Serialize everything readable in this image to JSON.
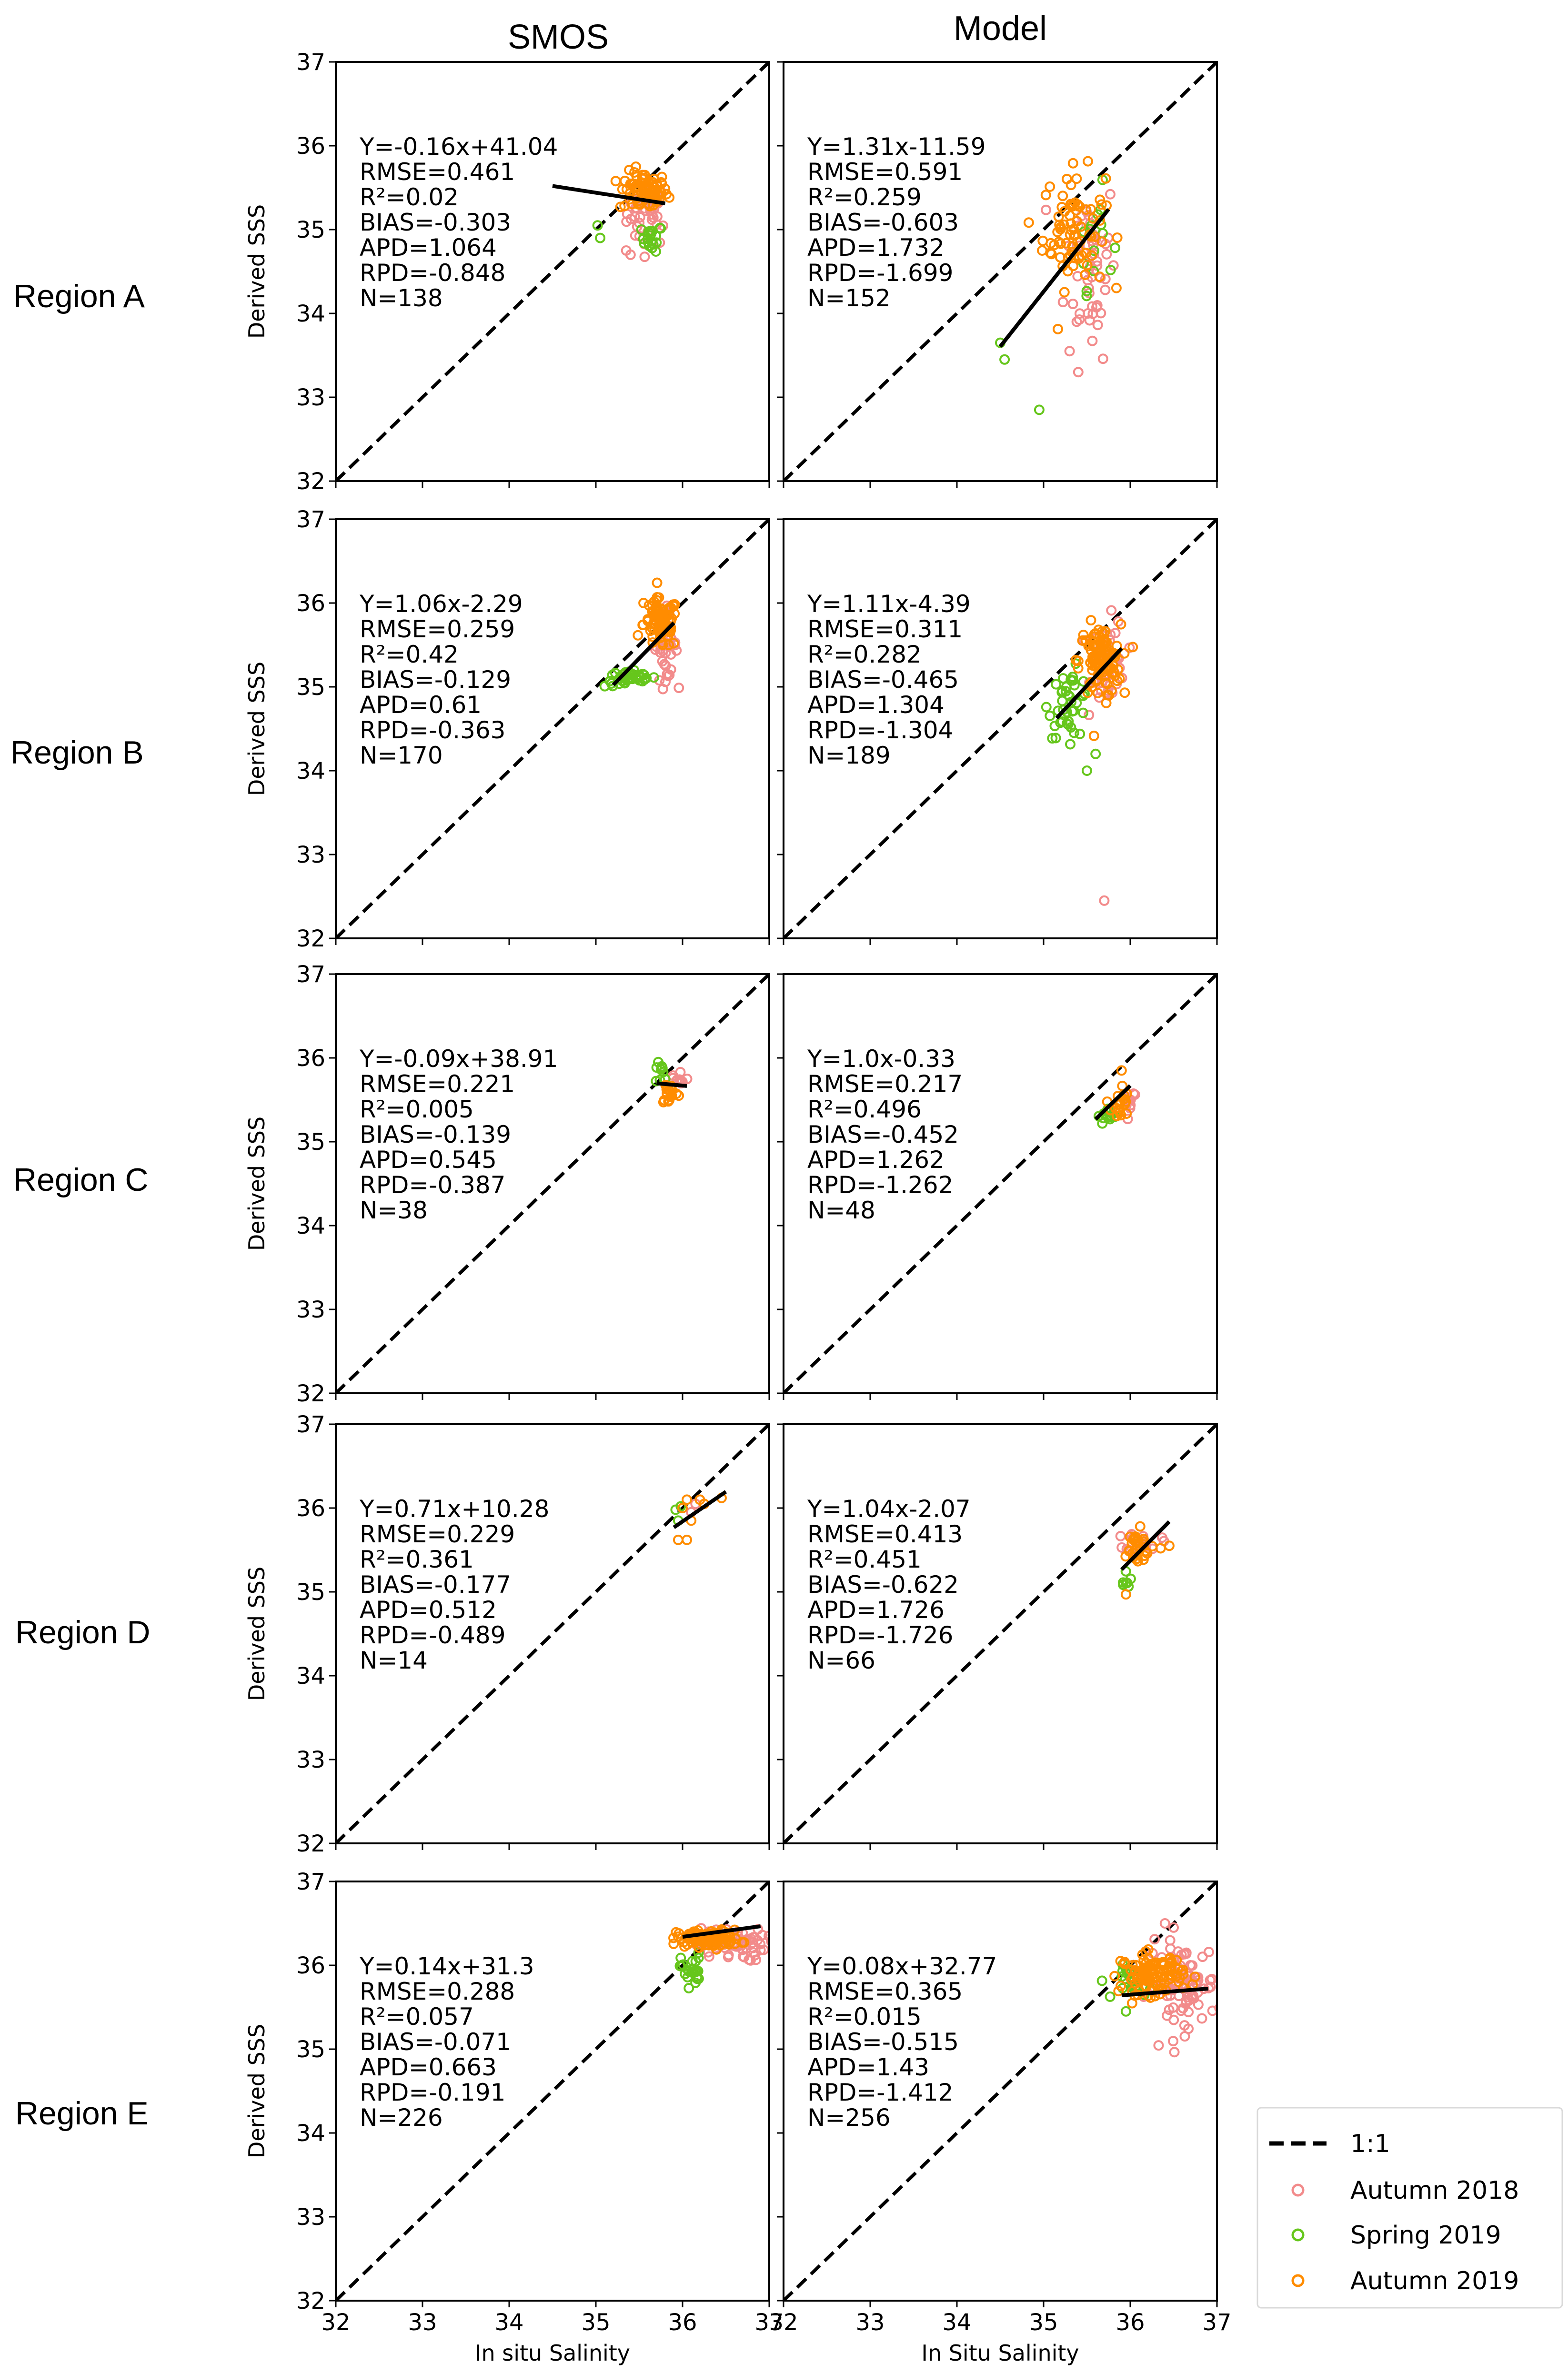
{
  "columns": [
    "SMOS",
    "Model"
  ],
  "rows": [
    "Region A",
    "Region B",
    "Region C",
    "Region D",
    "Region E"
  ],
  "colors": {
    "autumn2018": "#f28b8b",
    "spring2019": "#66c61c",
    "autumn2019": "#ff8c00",
    "fit": "#000000",
    "oneone": "#000000"
  },
  "legend": {
    "oneone": "1:1",
    "autumn2018": "Autumn 2018",
    "spring2019": "Spring 2019",
    "autumn2019": "Autumn 2019"
  },
  "chart_data": [
    {
      "type": "scatter",
      "row": "Region A",
      "col": "SMOS",
      "xlabel": "",
      "ylabel": "Derived SSS",
      "xlim": [
        32,
        37
      ],
      "ylim": [
        32,
        37
      ],
      "xticks": [
        "32",
        "33",
        "34",
        "35",
        "36",
        "37"
      ],
      "yticks": [
        "32",
        "33",
        "34",
        "35",
        "36",
        "37"
      ],
      "fit": {
        "slope": -0.16,
        "intercept": 41.04,
        "x_range": [
          34.5,
          35.8
        ]
      },
      "stats": [
        "Y=-0.16x+41.04",
        "RMSE=0.461",
        "R²=0.02",
        "BIAS=-0.303",
        "APD=1.064",
        "RPD=-0.848",
        "N=138"
      ],
      "clusters": [
        {
          "series": "autumn2018",
          "cx": 35.6,
          "cy": 35.2,
          "sx": 0.12,
          "sy": 0.2,
          "n": 40
        },
        {
          "series": "spring2019",
          "cx": 35.65,
          "cy": 34.9,
          "sx": 0.06,
          "sy": 0.08,
          "n": 20
        },
        {
          "series": "autumn2019",
          "cx": 35.55,
          "cy": 35.45,
          "sx": 0.14,
          "sy": 0.12,
          "n": 70
        }
      ],
      "points": [
        {
          "series": "spring2019",
          "x": 35.02,
          "y": 35.05
        },
        {
          "series": "spring2019",
          "x": 35.05,
          "y": 34.9
        },
        {
          "series": "autumn2018",
          "x": 35.35,
          "y": 34.75
        },
        {
          "series": "autumn2018",
          "x": 35.4,
          "y": 34.7
        }
      ]
    },
    {
      "type": "scatter",
      "row": "Region A",
      "col": "Model",
      "xlabel": "",
      "ylabel": "",
      "xlim": [
        32,
        37
      ],
      "ylim": [
        32,
        37
      ],
      "xticks": [
        "32",
        "33",
        "34",
        "35",
        "36",
        "37"
      ],
      "yticks": [
        "",
        "",
        "",
        "",
        "",
        ""
      ],
      "fit": {
        "slope": 1.31,
        "intercept": -11.59,
        "x_range": [
          34.5,
          35.75
        ]
      },
      "stats": [
        "Y=1.31x-11.59",
        "RMSE=0.591",
        "R²=0.259",
        "BIAS=-0.603",
        "APD=1.732",
        "RPD=-1.699",
        "N=152"
      ],
      "clusters": [
        {
          "series": "autumn2018",
          "cx": 35.55,
          "cy": 34.6,
          "sx": 0.15,
          "sy": 0.55,
          "n": 50
        },
        {
          "series": "spring2019",
          "cx": 35.6,
          "cy": 34.9,
          "sx": 0.1,
          "sy": 0.3,
          "n": 15
        },
        {
          "series": "autumn2019",
          "cx": 35.35,
          "cy": 35.0,
          "sx": 0.18,
          "sy": 0.35,
          "n": 80
        }
      ],
      "points": [
        {
          "series": "spring2019",
          "x": 34.5,
          "y": 33.65
        },
        {
          "series": "spring2019",
          "x": 34.55,
          "y": 33.45
        },
        {
          "series": "spring2019",
          "x": 34.95,
          "y": 32.85
        },
        {
          "series": "autumn2018",
          "x": 35.3,
          "y": 33.55
        },
        {
          "series": "autumn2018",
          "x": 35.4,
          "y": 33.3
        }
      ]
    },
    {
      "type": "scatter",
      "row": "Region B",
      "col": "SMOS",
      "xlabel": "",
      "ylabel": "Derived SSS",
      "xlim": [
        32,
        37
      ],
      "ylim": [
        32,
        37
      ],
      "xticks": [
        "32",
        "33",
        "34",
        "35",
        "36",
        "37"
      ],
      "yticks": [
        "32",
        "33",
        "34",
        "35",
        "36",
        "37"
      ],
      "fit": {
        "slope": 1.06,
        "intercept": -2.29,
        "x_range": [
          35.2,
          35.9
        ]
      },
      "stats": [
        "Y=1.06x-2.29",
        "RMSE=0.259",
        "R²=0.42",
        "BIAS=-0.129",
        "APD=0.61",
        "RPD=-0.363",
        "N=170"
      ],
      "clusters": [
        {
          "series": "autumn2018",
          "cx": 35.8,
          "cy": 35.5,
          "sx": 0.07,
          "sy": 0.2,
          "n": 40
        },
        {
          "series": "spring2019",
          "cx": 35.4,
          "cy": 35.1,
          "sx": 0.15,
          "sy": 0.05,
          "n": 40
        },
        {
          "series": "autumn2019",
          "cx": 35.75,
          "cy": 35.75,
          "sx": 0.1,
          "sy": 0.15,
          "n": 80
        }
      ],
      "points": [
        {
          "series": "autumn2019",
          "x": 35.55,
          "y": 36.0
        },
        {
          "series": "autumn2019",
          "x": 35.65,
          "y": 35.9
        }
      ]
    },
    {
      "type": "scatter",
      "row": "Region B",
      "col": "Model",
      "xlabel": "",
      "ylabel": "",
      "xlim": [
        32,
        37
      ],
      "ylim": [
        32,
        37
      ],
      "xticks": [
        "32",
        "33",
        "34",
        "35",
        "36",
        "37"
      ],
      "yticks": [
        "",
        "",
        "",
        "",
        "",
        ""
      ],
      "fit": {
        "slope": 1.11,
        "intercept": -4.39,
        "x_range": [
          35.15,
          35.9
        ]
      },
      "stats": [
        "Y=1.11x-4.39",
        "RMSE=0.311",
        "R²=0.282",
        "BIAS=-0.465",
        "APD=1.304",
        "RPD=-1.304",
        "N=189"
      ],
      "clusters": [
        {
          "series": "autumn2018",
          "cx": 35.75,
          "cy": 35.3,
          "sx": 0.1,
          "sy": 0.25,
          "n": 45
        },
        {
          "series": "spring2019",
          "cx": 35.3,
          "cy": 34.8,
          "sx": 0.12,
          "sy": 0.2,
          "n": 40
        },
        {
          "series": "autumn2019",
          "cx": 35.65,
          "cy": 35.3,
          "sx": 0.12,
          "sy": 0.22,
          "n": 100
        }
      ],
      "points": [
        {
          "series": "spring2019",
          "x": 35.5,
          "y": 34.0
        },
        {
          "series": "spring2019",
          "x": 35.6,
          "y": 34.2
        },
        {
          "series": "autumn2018",
          "x": 35.7,
          "y": 32.45
        }
      ]
    },
    {
      "type": "scatter",
      "row": "Region C",
      "col": "SMOS",
      "xlabel": "",
      "ylabel": "Derived SSS",
      "xlim": [
        32,
        37
      ],
      "ylim": [
        32,
        37
      ],
      "xticks": [
        "32",
        "33",
        "34",
        "35",
        "36",
        "37"
      ],
      "yticks": [
        "32",
        "33",
        "34",
        "35",
        "36",
        "37"
      ],
      "fit": {
        "slope": -0.09,
        "intercept": 38.91,
        "x_range": [
          35.7,
          36.05
        ]
      },
      "stats": [
        "Y=-0.09x+38.91",
        "RMSE=0.221",
        "R²=0.005",
        "BIAS=-0.139",
        "APD=0.545",
        "RPD=-0.387",
        "N=38"
      ],
      "clusters": [
        {
          "series": "autumn2018",
          "cx": 35.95,
          "cy": 35.75,
          "sx": 0.06,
          "sy": 0.06,
          "n": 10
        },
        {
          "series": "spring2019",
          "cx": 35.78,
          "cy": 35.8,
          "sx": 0.05,
          "sy": 0.08,
          "n": 8
        },
        {
          "series": "autumn2019",
          "cx": 35.85,
          "cy": 35.6,
          "sx": 0.05,
          "sy": 0.08,
          "n": 18
        }
      ],
      "points": [
        {
          "series": "spring2019",
          "x": 35.72,
          "y": 35.95
        }
      ]
    },
    {
      "type": "scatter",
      "row": "Region C",
      "col": "Model",
      "xlabel": "",
      "ylabel": "",
      "xlim": [
        32,
        37
      ],
      "ylim": [
        32,
        37
      ],
      "xticks": [
        "32",
        "33",
        "34",
        "35",
        "36",
        "37"
      ],
      "yticks": [
        "",
        "",
        "",
        "",
        "",
        ""
      ],
      "fit": {
        "slope": 1.0,
        "intercept": -0.33,
        "x_range": [
          35.6,
          36.0
        ]
      },
      "stats": [
        "Y=1.0x-0.33",
        "RMSE=0.217",
        "R²=0.496",
        "BIAS=-0.452",
        "APD=1.262",
        "RPD=-1.262",
        "N=48"
      ],
      "clusters": [
        {
          "series": "autumn2018",
          "cx": 35.98,
          "cy": 35.5,
          "sx": 0.05,
          "sy": 0.08,
          "n": 12
        },
        {
          "series": "spring2019",
          "cx": 35.75,
          "cy": 35.3,
          "sx": 0.06,
          "sy": 0.05,
          "n": 14
        },
        {
          "series": "autumn2019",
          "cx": 35.88,
          "cy": 35.45,
          "sx": 0.05,
          "sy": 0.12,
          "n": 20
        }
      ],
      "points": [
        {
          "series": "autumn2019",
          "x": 35.9,
          "y": 35.85
        }
      ]
    },
    {
      "type": "scatter",
      "row": "Region D",
      "col": "SMOS",
      "xlabel": "",
      "ylabel": "Derived SSS",
      "xlim": [
        32,
        37
      ],
      "ylim": [
        32,
        37
      ],
      "xticks": [
        "32",
        "33",
        "34",
        "35",
        "36",
        "37"
      ],
      "yticks": [
        "32",
        "33",
        "34",
        "35",
        "36",
        "37"
      ],
      "fit": {
        "slope": 0.71,
        "intercept": 10.28,
        "x_range": [
          35.9,
          36.5
        ]
      },
      "stats": [
        "Y=0.71x+10.28",
        "RMSE=0.229",
        "R²=0.361",
        "BIAS=-0.177",
        "APD=0.512",
        "RPD=-0.489",
        "N=14"
      ],
      "clusters": [],
      "points": [
        {
          "series": "spring2019",
          "x": 35.92,
          "y": 35.98
        },
        {
          "series": "spring2019",
          "x": 35.95,
          "y": 35.85
        },
        {
          "series": "autumn2018",
          "x": 36.1,
          "y": 35.95
        },
        {
          "series": "autumn2018",
          "x": 36.15,
          "y": 36.05
        },
        {
          "series": "autumn2019",
          "x": 36.05,
          "y": 36.1
        },
        {
          "series": "autumn2019",
          "x": 36.0,
          "y": 36.0
        },
        {
          "series": "autumn2019",
          "x": 36.2,
          "y": 36.1
        },
        {
          "series": "autumn2019",
          "x": 36.45,
          "y": 36.12
        },
        {
          "series": "autumn2019",
          "x": 35.95,
          "y": 35.62
        },
        {
          "series": "autumn2019",
          "x": 36.05,
          "y": 35.62
        },
        {
          "series": "autumn2019",
          "x": 36.1,
          "y": 35.85
        },
        {
          "series": "autumn2019",
          "x": 36.25,
          "y": 36.05
        },
        {
          "series": "autumn2018",
          "x": 36.2,
          "y": 36.1
        },
        {
          "series": "spring2019",
          "x": 35.98,
          "y": 36.02
        }
      ]
    },
    {
      "type": "scatter",
      "row": "Region D",
      "col": "Model",
      "xlabel": "",
      "ylabel": "",
      "xlim": [
        32,
        37
      ],
      "ylim": [
        32,
        37
      ],
      "xticks": [
        "32",
        "33",
        "34",
        "35",
        "36",
        "37"
      ],
      "yticks": [
        "",
        "",
        "",
        "",
        "",
        ""
      ],
      "fit": {
        "slope": 1.04,
        "intercept": -2.07,
        "x_range": [
          35.9,
          36.45
        ]
      },
      "stats": [
        "Y=1.04x-2.07",
        "RMSE=0.413",
        "R²=0.451",
        "BIAS=-0.622",
        "APD=1.726",
        "RPD=-1.726",
        "N=66"
      ],
      "clusters": [
        {
          "series": "autumn2018",
          "cx": 36.15,
          "cy": 35.6,
          "sx": 0.1,
          "sy": 0.06,
          "n": 20
        },
        {
          "series": "spring2019",
          "cx": 35.95,
          "cy": 35.2,
          "sx": 0.03,
          "sy": 0.1,
          "n": 8
        },
        {
          "series": "autumn2019",
          "cx": 36.05,
          "cy": 35.5,
          "sx": 0.1,
          "sy": 0.12,
          "n": 30
        }
      ],
      "points": [
        {
          "series": "autumn2019",
          "x": 35.95,
          "y": 34.97
        },
        {
          "series": "autumn2019",
          "x": 36.35,
          "y": 35.52
        },
        {
          "series": "autumn2019",
          "x": 36.45,
          "y": 35.55
        }
      ]
    },
    {
      "type": "scatter",
      "row": "Region E",
      "col": "SMOS",
      "xlabel": "In situ Salinity",
      "ylabel": "Derived SSS",
      "xlim": [
        32,
        37
      ],
      "ylim": [
        32,
        37
      ],
      "xticks": [
        "32",
        "33",
        "34",
        "35",
        "36",
        "37"
      ],
      "yticks": [
        "32",
        "33",
        "34",
        "35",
        "36",
        "37"
      ],
      "fit": {
        "slope": 0.14,
        "intercept": 31.3,
        "x_range": [
          36.0,
          36.9
        ]
      },
      "stats": [
        "Y=0.14x+31.3",
        "RMSE=0.288",
        "R²=0.057",
        "BIAS=-0.071",
        "APD=0.663",
        "RPD=-0.191",
        "N=226"
      ],
      "clusters": [
        {
          "series": "autumn2018",
          "cx": 36.55,
          "cy": 36.25,
          "sx": 0.2,
          "sy": 0.1,
          "n": 60
        },
        {
          "series": "spring2019",
          "cx": 36.1,
          "cy": 35.95,
          "sx": 0.06,
          "sy": 0.1,
          "n": 25
        },
        {
          "series": "autumn2019",
          "cx": 36.3,
          "cy": 36.32,
          "sx": 0.18,
          "sy": 0.05,
          "n": 120
        }
      ],
      "points": []
    },
    {
      "type": "scatter",
      "row": "Region E",
      "col": "Model",
      "xlabel": "In Situ Salinity",
      "ylabel": "",
      "xlim": [
        32,
        37
      ],
      "ylim": [
        32,
        37
      ],
      "xticks": [
        "32",
        "33",
        "34",
        "35",
        "36",
        "37"
      ],
      "yticks": [
        "",
        "",
        "",
        "",
        "",
        ""
      ],
      "fit": {
        "slope": 0.08,
        "intercept": 32.77,
        "x_range": [
          35.9,
          36.9
        ]
      },
      "stats": [
        "Y=0.08x+32.77",
        "RMSE=0.365",
        "R²=0.015",
        "BIAS=-0.515",
        "APD=1.43",
        "RPD=-1.412",
        "N=256"
      ],
      "clusters": [
        {
          "series": "autumn2018",
          "cx": 36.6,
          "cy": 35.75,
          "sx": 0.2,
          "sy": 0.25,
          "n": 90
        },
        {
          "series": "spring2019",
          "cx": 36.05,
          "cy": 35.8,
          "sx": 0.1,
          "sy": 0.1,
          "n": 25
        },
        {
          "series": "autumn2019",
          "cx": 36.25,
          "cy": 35.9,
          "sx": 0.18,
          "sy": 0.12,
          "n": 110
        }
      ],
      "points": [
        {
          "series": "spring2019",
          "x": 35.95,
          "y": 35.45
        },
        {
          "series": "autumn2018",
          "x": 36.4,
          "y": 36.5
        },
        {
          "series": "autumn2018",
          "x": 36.5,
          "y": 36.45
        }
      ]
    }
  ]
}
